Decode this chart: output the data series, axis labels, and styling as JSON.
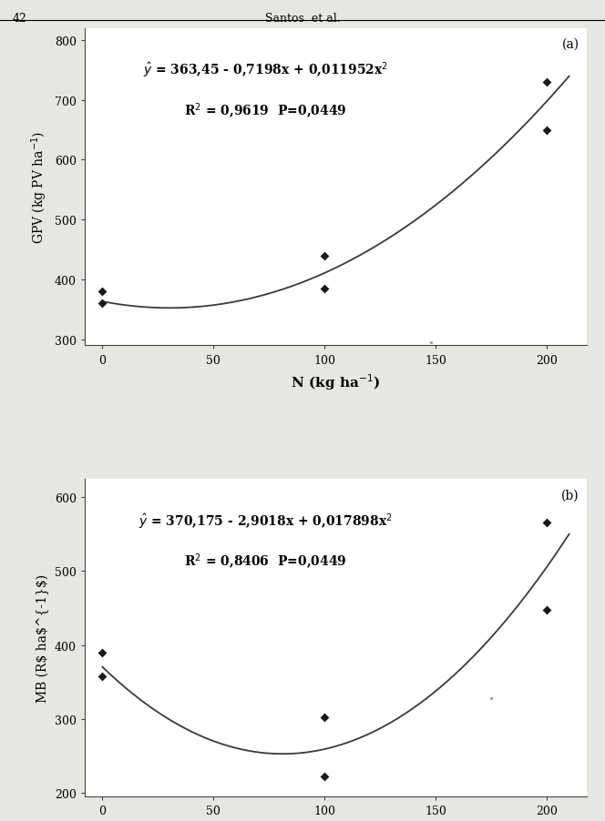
{
  "panel_a": {
    "label": "(a)",
    "equation_line1": "$\\hat{y}$ = 363,45 - 0,7198x + 0,011952x$^{2}$",
    "equation_line2": "R$^{2}$ = 0,9619  P=0,0449",
    "coeffs": [
      363.45,
      -0.7198,
      0.011952
    ],
    "data_x": [
      0,
      0,
      100,
      100,
      200,
      200
    ],
    "data_y": [
      380,
      360,
      440,
      385,
      730,
      650
    ],
    "xlabel": "N (kg ha$^{-1}$)",
    "ylabel": "GPV (kg PV ha$^{-1}$)",
    "xlim": [
      -8,
      218
    ],
    "ylim": [
      290,
      820
    ],
    "xticks": [
      0,
      50,
      100,
      150,
      200
    ],
    "yticks": [
      300,
      400,
      500,
      600,
      700,
      800
    ],
    "extra_point_x": 148,
    "extra_point_y": 296
  },
  "panel_b": {
    "label": "(b)",
    "equation_line1": "$\\hat{y}$ = 370,175 - 2,9018x + 0,017898x$^{2}$",
    "equation_line2": "R$^{2}$ = 0,8406  P=0,0449",
    "coeffs": [
      370.175,
      -2.9018,
      0.017898
    ],
    "data_x": [
      0,
      0,
      100,
      100,
      200,
      200
    ],
    "data_y": [
      390,
      358,
      302,
      222,
      566,
      447
    ],
    "xlabel": "N (kg ha$^{-1}$)",
    "ylabel": "MB (R$ ha$^{-1}$)",
    "xlim": [
      -8,
      218
    ],
    "ylim": [
      195,
      625
    ],
    "xticks": [
      0,
      50,
      100,
      150,
      200
    ],
    "yticks": [
      200,
      300,
      400,
      500,
      600
    ],
    "extra_point_x": 175,
    "extra_point_y": 328
  },
  "header_text": "Santos  et al.",
  "page_number": "42",
  "bg_color": "#e8e6e0",
  "plot_bg": "#ffffff",
  "line_color": "#3a3a3a",
  "marker_color": "#1a1a1a",
  "marker_size": 5,
  "line_width": 1.3,
  "font_size_eq": 10,
  "font_size_label": 10,
  "font_size_axis": 11,
  "font_size_tick": 9
}
